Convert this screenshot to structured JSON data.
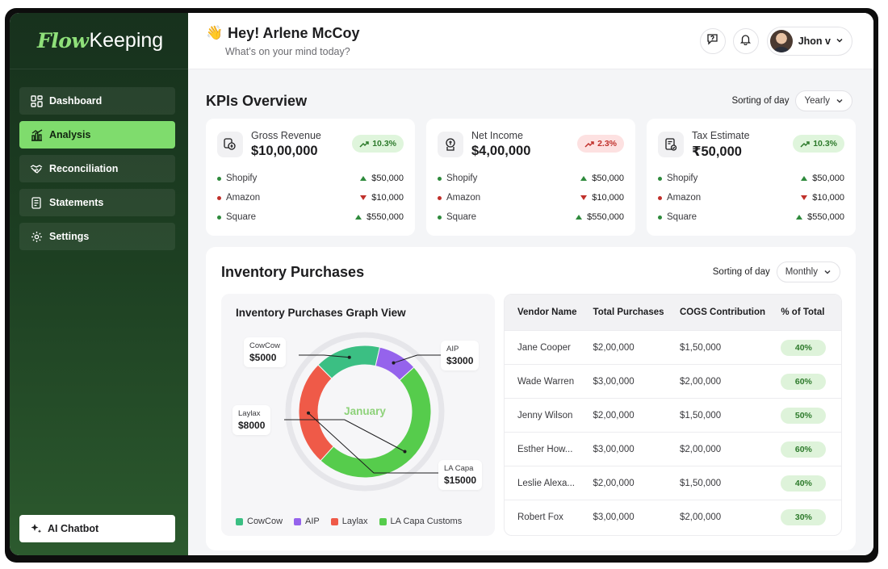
{
  "brand": {
    "flow": "Flow",
    "keeping": "Keeping"
  },
  "sidebar": {
    "items": [
      {
        "label": "Dashboard",
        "icon": "dashboard-icon"
      },
      {
        "label": "Analysis",
        "icon": "chart-icon",
        "active": true
      },
      {
        "label": "Reconciliation",
        "icon": "handshake-icon"
      },
      {
        "label": "Statements",
        "icon": "document-icon"
      },
      {
        "label": "Settings",
        "icon": "gear-icon"
      }
    ],
    "chatbot_label": "AI Chatbot"
  },
  "header": {
    "greeting": "Hey! Arlene McCoy",
    "subtitle": "What’s on your mind today?",
    "user_name": "Jhon v"
  },
  "kpis": {
    "title": "KPIs Overview",
    "sort_label": "Sorting of day",
    "sort_value": "Yearly",
    "cards": [
      {
        "name": "Gross Revenue",
        "value": "$10,00,000",
        "change": "10.3%",
        "trend": "up",
        "icon": "revenue-icon",
        "lines": [
          {
            "source": "Shopify",
            "amount": "$50,000",
            "dir": "up"
          },
          {
            "source": "Amazon",
            "amount": "$10,000",
            "dir": "down"
          },
          {
            "source": "Square",
            "amount": "$550,000",
            "dir": "up"
          }
        ]
      },
      {
        "name": "Net Income",
        "value": "$4,00,000",
        "change": "2.3%",
        "trend": "down",
        "icon": "income-icon",
        "lines": [
          {
            "source": "Shopify",
            "amount": "$50,000",
            "dir": "up"
          },
          {
            "source": "Amazon",
            "amount": "$10,000",
            "dir": "down"
          },
          {
            "source": "Square",
            "amount": "$550,000",
            "dir": "up"
          }
        ]
      },
      {
        "name": "Tax Estimate",
        "value": "₹50,000",
        "change": "10.3%",
        "trend": "up",
        "icon": "tax-icon",
        "lines": [
          {
            "source": "Shopify",
            "amount": "$50,000",
            "dir": "up"
          },
          {
            "source": "Amazon",
            "amount": "$10,000",
            "dir": "down"
          },
          {
            "source": "Square",
            "amount": "$550,000",
            "dir": "up"
          }
        ]
      }
    ]
  },
  "inventory": {
    "title": "Inventory Purchases",
    "sort_label": "Sorting of day",
    "sort_value": "Monthly",
    "graph_title": "Inventory Purchases Graph View",
    "center_label": "January",
    "table": {
      "headers": [
        "Vendor Name",
        "Total Purchases",
        "COGS Contribution",
        "% of Total"
      ],
      "rows": [
        [
          "Jane Cooper",
          "$2,00,000",
          "$1,50,000",
          "40%"
        ],
        [
          "Wade Warren",
          "$3,00,000",
          "$2,00,000",
          "60%"
        ],
        [
          "Jenny Wilson",
          "$2,00,000",
          "$1,50,000",
          "50%"
        ],
        [
          "Esther How...",
          "$3,00,000",
          "$2,00,000",
          "60%"
        ],
        [
          "Leslie Alexa...",
          "$2,00,000",
          "$1,50,000",
          "40%"
        ],
        [
          "Robert Fox",
          "$3,00,000",
          "$2,00,000",
          "30%"
        ]
      ]
    }
  },
  "chart_data": {
    "type": "pie",
    "title": "Inventory Purchases Graph View",
    "center_label": "January",
    "slices": [
      {
        "label": "CowCow",
        "value": 5000,
        "display": "$5000",
        "color": "#3bbf83"
      },
      {
        "label": "AIP",
        "value": 3000,
        "display": "$3000",
        "color": "#9563ec"
      },
      {
        "label": "LA Capa",
        "value": 15000,
        "display": "$15000",
        "color": "#56cc4c"
      },
      {
        "label": "Laylax",
        "value": 8000,
        "display": "$8000",
        "color": "#ef5a48"
      }
    ],
    "legend": [
      {
        "label": "CowCow",
        "color": "#3bbf83"
      },
      {
        "label": "AIP",
        "color": "#9563ec"
      },
      {
        "label": "Laylax",
        "color": "#ef5a48"
      },
      {
        "label": "LA Capa Customs",
        "color": "#56cc4c"
      }
    ],
    "legend_placement": "bottom"
  },
  "colors": {
    "accent": "#7fdc6d",
    "sidebar": "#1d3f22",
    "up": "#2e8a3c",
    "down": "#c0302b",
    "shopify_dot": "#2e8a3c",
    "amazon_dot": "#c0302b",
    "square_dot": "#2e8a3c"
  }
}
